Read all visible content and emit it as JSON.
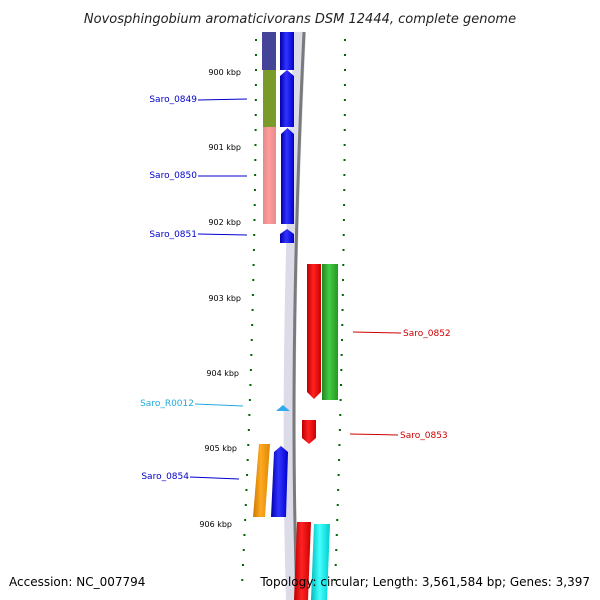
{
  "title": "Novosphingobium aromaticivorans DSM 12444, complete genome",
  "accession_text": "Accession: NC_007794",
  "topology_text": "Topology: circular; Length: 3,561,584 bp; Genes: 3,397",
  "colors": {
    "backbone": "#808080",
    "tick": "#006600",
    "forward_gene": "#0000ee",
    "reverse_gene": "#ee0000",
    "rna_gene": "#00aaee"
  },
  "scale": {
    "unit": "kbp",
    "labels": [
      {
        "value": 900,
        "text": "900 kbp"
      },
      {
        "value": 901,
        "text": "901 kbp"
      },
      {
        "value": 902,
        "text": "902 kbp"
      },
      {
        "value": 903,
        "text": "903 kbp"
      },
      {
        "value": 904,
        "text": "904 kbp"
      },
      {
        "value": 905,
        "text": "905 kbp"
      },
      {
        "value": 906,
        "text": "906 kbp"
      }
    ]
  },
  "genes": [
    {
      "label": "Saro_0849",
      "strand": "forward",
      "color": "#0000ee"
    },
    {
      "label": "Saro_0850",
      "strand": "forward",
      "color": "#0000ee"
    },
    {
      "label": "Saro_0851",
      "strand": "forward",
      "color": "#0000ee"
    },
    {
      "label": "Saro_0852",
      "strand": "reverse",
      "color": "#cc0000"
    },
    {
      "label": "Saro_R0012",
      "strand": "forward",
      "color": "#22aadd"
    },
    {
      "label": "Saro_0853",
      "strand": "reverse",
      "color": "#cc0000"
    },
    {
      "label": "Saro_0854",
      "strand": "forward",
      "color": "#0000ee"
    }
  ]
}
